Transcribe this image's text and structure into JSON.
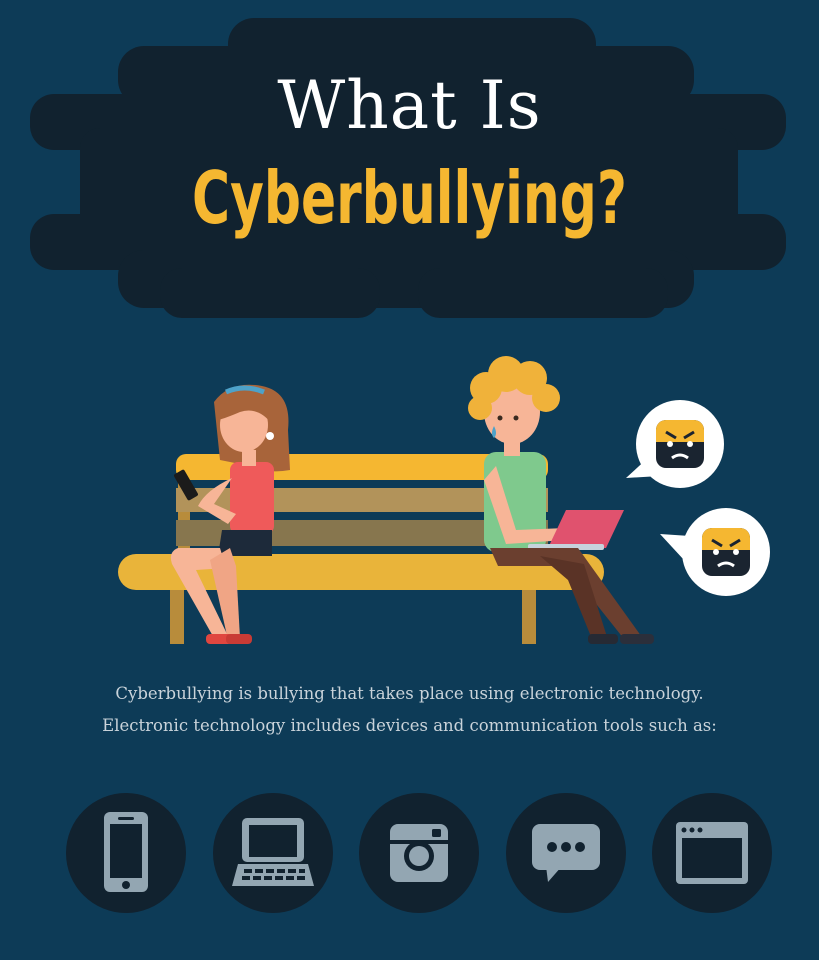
{
  "header": {
    "line1": "What Is",
    "line2": "Cyberbullying?"
  },
  "illustration": {
    "speech_bubbles": [
      "angry-face-icon",
      "angry-face-icon"
    ]
  },
  "description": {
    "line1": "Cyberbullying is bullying that takes place using electronic technology.",
    "line2": "Electronic technology includes devices and communication tools such as:"
  },
  "tools": [
    {
      "icon": "smartphone-icon"
    },
    {
      "icon": "laptop-icon"
    },
    {
      "icon": "instagram-icon"
    },
    {
      "icon": "chat-bubble-icon"
    },
    {
      "icon": "browser-window-icon"
    }
  ],
  "colors": {
    "background": "#0d3b57",
    "title_panel": "#11222f",
    "accent_yellow": "#f5b731",
    "icon_circle": "#11222f",
    "icon_fill": "#93a6b2"
  }
}
